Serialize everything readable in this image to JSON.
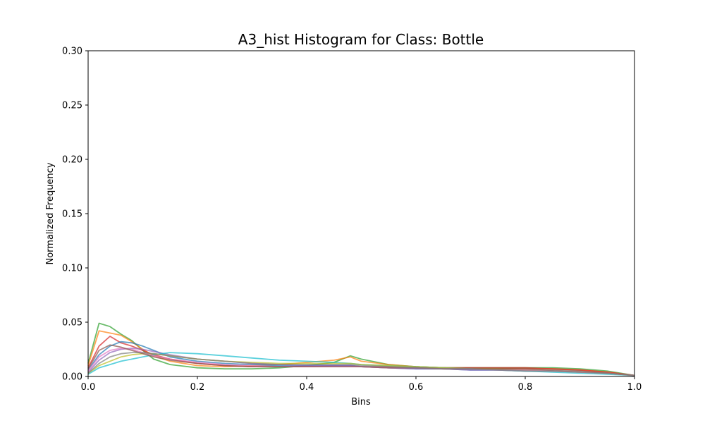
{
  "chart_data": {
    "type": "line",
    "title": "A3_hist Histogram for Class: Bottle",
    "xlabel": "Bins",
    "ylabel": "Normalized Frequency",
    "xlim": [
      0,
      1.0
    ],
    "ylim": [
      0,
      0.3
    ],
    "xticks": [
      "0.0",
      "0.2",
      "0.4",
      "0.6",
      "0.8",
      "1.0"
    ],
    "yticks": [
      "0.00",
      "0.05",
      "0.10",
      "0.15",
      "0.20",
      "0.25",
      "0.30"
    ],
    "grid": false,
    "legend": "none",
    "x": [
      0.0,
      0.02,
      0.04,
      0.06,
      0.08,
      0.1,
      0.12,
      0.15,
      0.2,
      0.25,
      0.3,
      0.35,
      0.4,
      0.45,
      0.48,
      0.5,
      0.55,
      0.6,
      0.65,
      0.7,
      0.75,
      0.8,
      0.85,
      0.9,
      0.95,
      1.0
    ],
    "series": [
      {
        "color": "#2ca02c",
        "values": [
          0.012,
          0.049,
          0.046,
          0.039,
          0.033,
          0.024,
          0.016,
          0.011,
          0.008,
          0.007,
          0.007,
          0.008,
          0.01,
          0.013,
          0.019,
          0.016,
          0.011,
          0.009,
          0.008,
          0.008,
          0.008,
          0.008,
          0.008,
          0.007,
          0.005,
          0.001
        ]
      },
      {
        "color": "#ff7f0e",
        "values": [
          0.01,
          0.042,
          0.04,
          0.038,
          0.032,
          0.025,
          0.019,
          0.014,
          0.01,
          0.009,
          0.01,
          0.011,
          0.013,
          0.015,
          0.018,
          0.014,
          0.011,
          0.009,
          0.008,
          0.007,
          0.007,
          0.007,
          0.007,
          0.006,
          0.004,
          0.001
        ]
      },
      {
        "color": "#d62728",
        "values": [
          0.008,
          0.028,
          0.037,
          0.031,
          0.028,
          0.024,
          0.02,
          0.016,
          0.012,
          0.01,
          0.009,
          0.009,
          0.009,
          0.01,
          0.01,
          0.009,
          0.009,
          0.008,
          0.008,
          0.008,
          0.008,
          0.008,
          0.007,
          0.006,
          0.004,
          0.001
        ]
      },
      {
        "color": "#1f77b4",
        "values": [
          0.006,
          0.02,
          0.028,
          0.032,
          0.031,
          0.028,
          0.024,
          0.018,
          0.014,
          0.012,
          0.011,
          0.01,
          0.01,
          0.01,
          0.01,
          0.009,
          0.008,
          0.007,
          0.007,
          0.006,
          0.006,
          0.006,
          0.005,
          0.004,
          0.003,
          0.001
        ]
      },
      {
        "color": "#9467bd",
        "values": [
          0.004,
          0.015,
          0.022,
          0.025,
          0.026,
          0.025,
          0.023,
          0.02,
          0.016,
          0.014,
          0.012,
          0.011,
          0.01,
          0.01,
          0.01,
          0.009,
          0.008,
          0.007,
          0.007,
          0.006,
          0.006,
          0.005,
          0.005,
          0.004,
          0.003,
          0.001
        ]
      },
      {
        "color": "#17becf",
        "values": [
          0.002,
          0.008,
          0.011,
          0.014,
          0.016,
          0.018,
          0.02,
          0.022,
          0.021,
          0.019,
          0.017,
          0.015,
          0.014,
          0.013,
          0.012,
          0.011,
          0.01,
          0.009,
          0.008,
          0.007,
          0.006,
          0.005,
          0.004,
          0.003,
          0.002,
          0.001
        ]
      },
      {
        "color": "#bcbd22",
        "values": [
          0.003,
          0.01,
          0.014,
          0.018,
          0.02,
          0.021,
          0.021,
          0.019,
          0.016,
          0.014,
          0.013,
          0.012,
          0.012,
          0.012,
          0.012,
          0.011,
          0.01,
          0.009,
          0.008,
          0.007,
          0.007,
          0.006,
          0.005,
          0.004,
          0.003,
          0.001
        ]
      },
      {
        "color": "#e377c2",
        "values": [
          0.005,
          0.018,
          0.024,
          0.026,
          0.025,
          0.022,
          0.019,
          0.016,
          0.013,
          0.011,
          0.01,
          0.009,
          0.009,
          0.009,
          0.009,
          0.009,
          0.008,
          0.008,
          0.007,
          0.007,
          0.006,
          0.006,
          0.005,
          0.004,
          0.003,
          0.001
        ]
      },
      {
        "color": "#8c564b",
        "values": [
          0.007,
          0.024,
          0.029,
          0.027,
          0.024,
          0.021,
          0.018,
          0.015,
          0.012,
          0.01,
          0.009,
          0.009,
          0.009,
          0.009,
          0.009,
          0.009,
          0.008,
          0.008,
          0.007,
          0.007,
          0.007,
          0.007,
          0.006,
          0.005,
          0.003,
          0.001
        ]
      },
      {
        "color": "#7f7f7f",
        "values": [
          0.003,
          0.012,
          0.018,
          0.021,
          0.022,
          0.022,
          0.021,
          0.019,
          0.016,
          0.014,
          0.012,
          0.011,
          0.011,
          0.011,
          0.011,
          0.01,
          0.009,
          0.008,
          0.007,
          0.007,
          0.006,
          0.005,
          0.005,
          0.004,
          0.003,
          0.001
        ]
      }
    ]
  }
}
